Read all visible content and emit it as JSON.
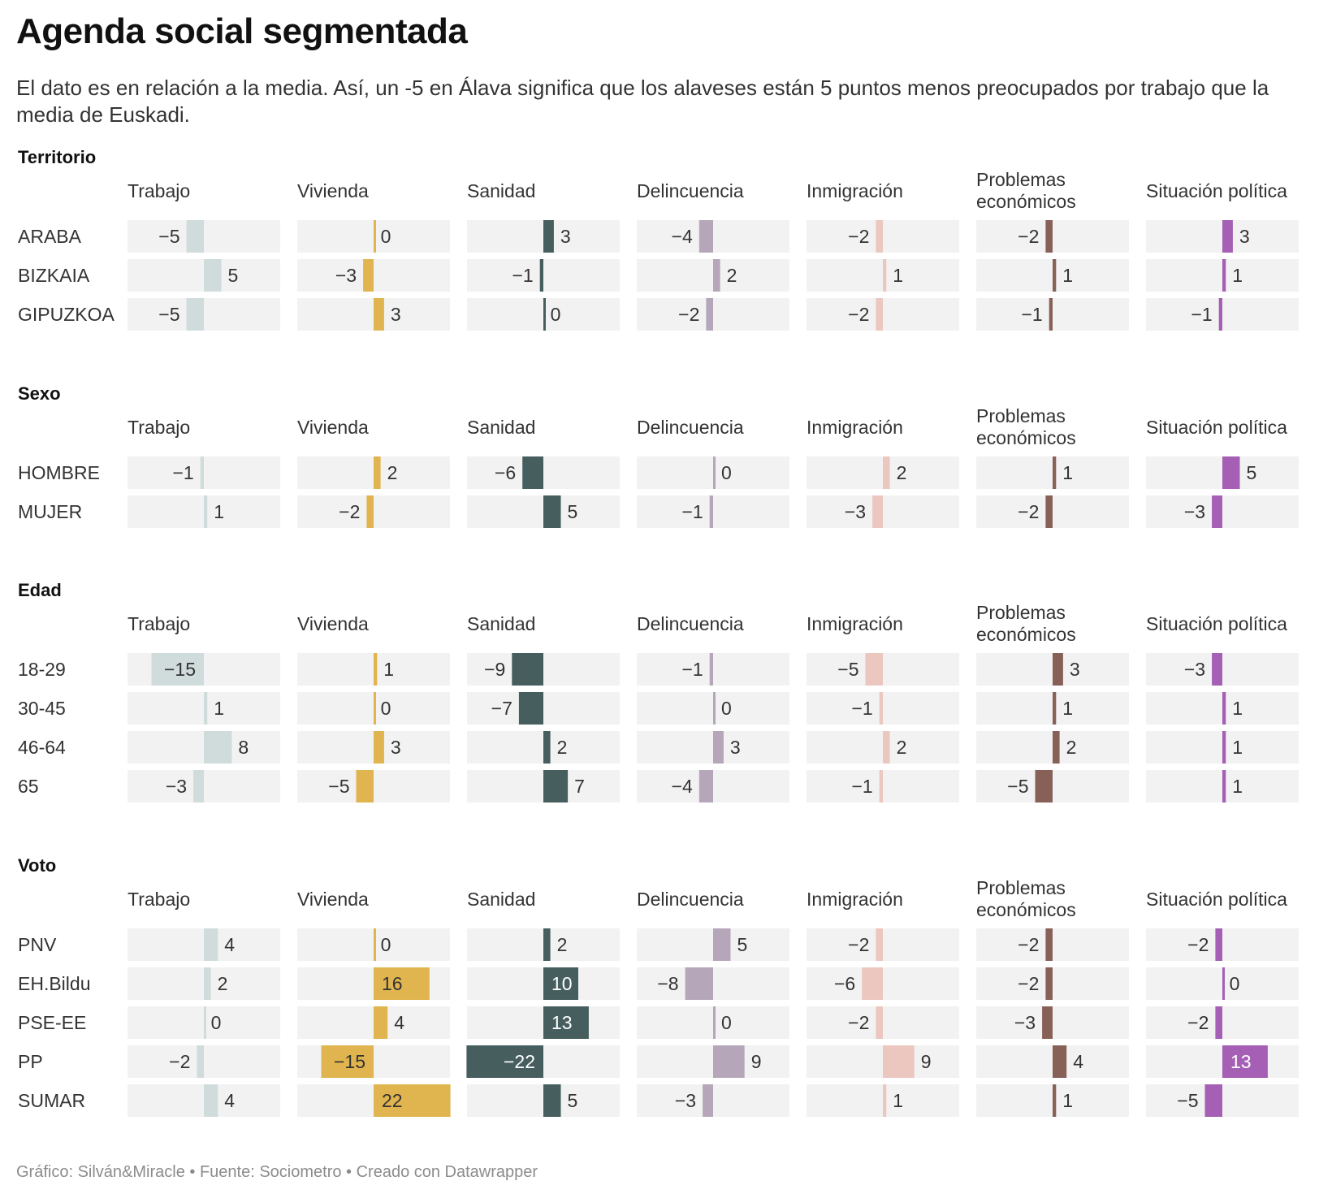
{
  "title": "Agenda social segmentada",
  "subtitle": "El dato es en relación a la media. Así, un -5 en Álava significa que los alaveses están 5 puntos menos preocupados por trabajo que la media de Euskadi.",
  "footer": "Gráfico: Silván&Miracle • Fuente: Sociometro • Creado con Datawrapper",
  "colors": {
    "Trabajo": "#d0dcdb",
    "Vivienda": "#e0b44f",
    "Sanidad": "#465e5e",
    "Delincuencia": "#b5a7b9",
    "Inmigración": "#ecc7c0",
    "Problemas económicos": "#876158",
    "Situación política": "#a55fb4",
    "cell_background": "#f2f2f2"
  },
  "chart_data": {
    "type": "bar",
    "orientation": "horizontal, diverging from zero",
    "scale": [
      -22,
      22
    ],
    "columns": [
      "Trabajo",
      "Vivienda",
      "Sanidad",
      "Delincuencia",
      "Inmigración",
      "Problemas económicos",
      "Situación política"
    ],
    "groups": [
      {
        "name": "Territorio",
        "rows": [
          {
            "label": "ARABA",
            "values": [
              -5,
              0,
              3,
              -4,
              -2,
              -2,
              3
            ]
          },
          {
            "label": "BIZKAIA",
            "values": [
              5,
              -3,
              -1,
              2,
              1,
              1,
              1
            ]
          },
          {
            "label": "GIPUZKOA",
            "values": [
              -5,
              3,
              0,
              -2,
              -2,
              -1,
              -1
            ]
          }
        ]
      },
      {
        "name": "Sexo",
        "rows": [
          {
            "label": "HOMBRE",
            "values": [
              -1,
              2,
              -6,
              0,
              2,
              1,
              5
            ]
          },
          {
            "label": "MUJER",
            "values": [
              1,
              -2,
              5,
              -1,
              -3,
              -2,
              -3
            ]
          }
        ]
      },
      {
        "name": "Edad",
        "rows": [
          {
            "label": "18-29",
            "values": [
              -15,
              1,
              -9,
              -1,
              -5,
              3,
              -3
            ]
          },
          {
            "label": "30-45",
            "values": [
              1,
              0,
              -7,
              0,
              -1,
              1,
              1
            ]
          },
          {
            "label": "46-64",
            "values": [
              8,
              3,
              2,
              3,
              2,
              2,
              1
            ]
          },
          {
            "label": "65",
            "values": [
              -3,
              -5,
              7,
              -4,
              -1,
              -5,
              1
            ]
          }
        ]
      },
      {
        "name": "Voto",
        "rows": [
          {
            "label": "PNV",
            "values": [
              4,
              0,
              2,
              5,
              -2,
              -2,
              -2
            ]
          },
          {
            "label": "EH.Bildu",
            "values": [
              2,
              16,
              10,
              -8,
              -6,
              -2,
              0
            ]
          },
          {
            "label": "PSE-EE",
            "values": [
              0,
              4,
              13,
              0,
              -2,
              -3,
              -2
            ]
          },
          {
            "label": "PP",
            "values": [
              -2,
              -15,
              -22,
              9,
              9,
              4,
              13
            ]
          },
          {
            "label": "SUMAR",
            "values": [
              4,
              22,
              5,
              -3,
              1,
              1,
              -5
            ]
          }
        ]
      }
    ]
  }
}
